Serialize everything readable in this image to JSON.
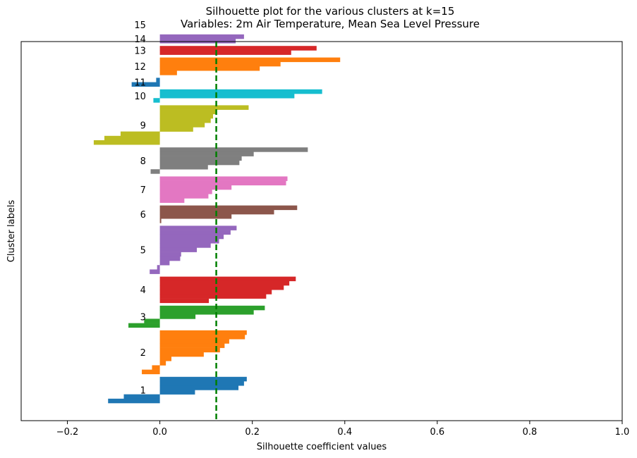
{
  "chart_data": {
    "type": "bar",
    "orientation": "horizontal",
    "title_line1": "Silhouette plot for the various clusters at k=15",
    "title_line2": "Variables: 2m Air Temperature, Mean Sea Level Pressure",
    "xlabel": "Silhouette coefficient values",
    "ylabel": "Cluster labels",
    "xlim": [
      -0.3,
      1.0
    ],
    "xticks": [
      -0.2,
      0.0,
      0.2,
      0.4,
      0.6,
      0.8,
      1.0
    ],
    "xtick_labels": [
      "−0.2",
      "0.0",
      "0.2",
      "0.4",
      "0.6",
      "0.8",
      "1.0"
    ],
    "average_silhouette": 0.122,
    "average_line_color": "#007f00",
    "grid": false,
    "clusters": [
      {
        "label": "1",
        "color": "#1f77b4",
        "values": [
          0.188,
          0.182,
          0.17,
          0.076,
          -0.078,
          -0.112
        ]
      },
      {
        "label": "2",
        "color": "#ff7f0e",
        "values": [
          0.188,
          0.184,
          0.15,
          0.14,
          0.13,
          0.095,
          0.025,
          0.013,
          -0.017,
          -0.039
        ]
      },
      {
        "label": "3",
        "color": "#2ca02c",
        "values": [
          0.227,
          0.203,
          0.077,
          -0.034,
          -0.068
        ]
      },
      {
        "label": "4",
        "color": "#d62728",
        "values": [
          0.294,
          0.28,
          0.268,
          0.242,
          0.23,
          0.106
        ]
      },
      {
        "label": "5",
        "color": "#9467bd",
        "values": [
          0.166,
          0.153,
          0.138,
          0.128,
          0.11,
          0.08,
          0.046,
          0.044,
          0.021,
          -0.006,
          -0.022
        ]
      },
      {
        "label": "6",
        "color": "#8c564b",
        "values": [
          0.297,
          0.247,
          0.155,
          0.003
        ]
      },
      {
        "label": "7",
        "color": "#e377c2",
        "values": [
          0.276,
          0.273,
          0.155,
          0.113,
          0.105,
          0.053
        ]
      },
      {
        "label": "8",
        "color": "#7f7f7f",
        "values": [
          0.32,
          0.203,
          0.177,
          0.172,
          0.104,
          -0.02
        ]
      },
      {
        "label": "9",
        "color": "#bcbd22",
        "values": [
          0.192,
          0.122,
          0.115,
          0.11,
          0.097,
          0.072,
          -0.085,
          -0.12,
          -0.143
        ]
      },
      {
        "label": "10",
        "color": "#17becf",
        "values": [
          0.351,
          0.291,
          -0.014
        ]
      },
      {
        "label": "11",
        "color": "#1f77b4",
        "values": [
          -0.008,
          -0.061
        ]
      },
      {
        "label": "12",
        "color": "#ff7f0e",
        "values": [
          0.39,
          0.261,
          0.216,
          0.037
        ]
      },
      {
        "label": "13",
        "color": "#d62728",
        "values": [
          0.339,
          0.284
        ]
      },
      {
        "label": "14",
        "color": "#9467bd",
        "values": [
          0.182,
          0.164
        ]
      },
      {
        "label": "15",
        "color": "#9467bd",
        "values": []
      }
    ]
  }
}
